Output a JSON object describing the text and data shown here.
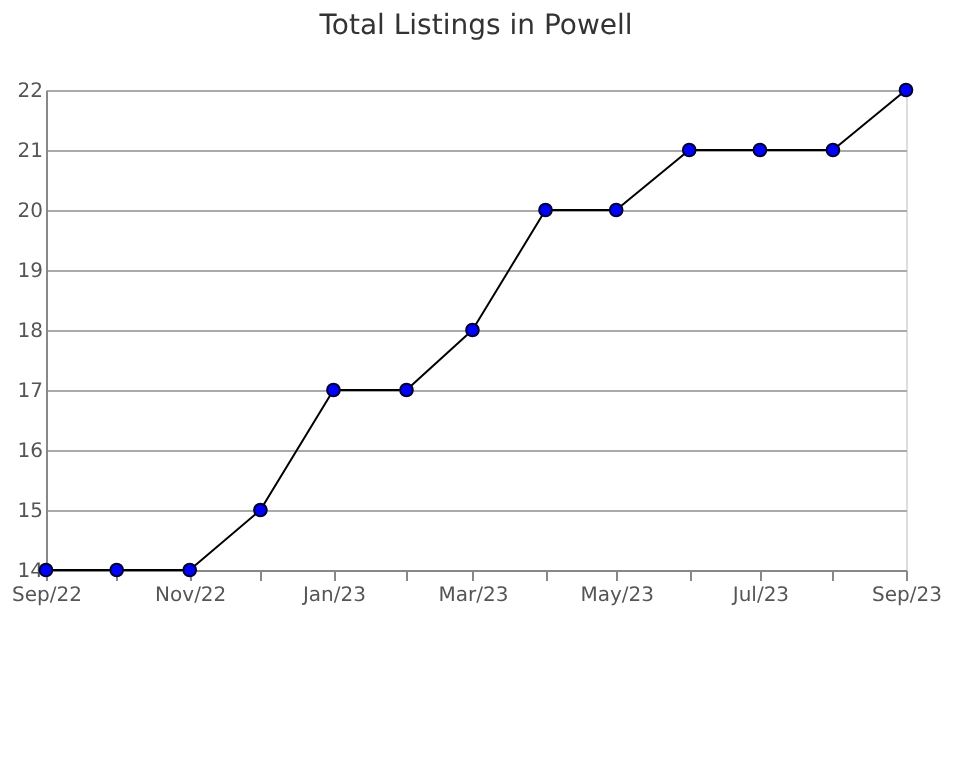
{
  "chart_data": {
    "type": "line",
    "title": "Total Listings in Powell",
    "x": [
      "2022-09",
      "2022-10",
      "2022-11",
      "2022-12",
      "2023-01",
      "2023-02",
      "2023-03",
      "2023-04",
      "2023-05",
      "2023-06",
      "2023-07",
      "2023-08",
      "2023-09"
    ],
    "series": [
      {
        "color": "#0000ff",
        "values": [
          14,
          14,
          14,
          15,
          17,
          17,
          18,
          20,
          20,
          21,
          21,
          21,
          22
        ]
      }
    ],
    "xlim": [
      "2022-09",
      "2023-09"
    ],
    "xticks": [
      {
        "value": "2022-09",
        "label": "Sep/22"
      },
      {
        "value": "2022-10",
        "label": null
      },
      {
        "value": "2022-11",
        "label": "Nov/22"
      },
      {
        "value": "2022-12",
        "label": null
      },
      {
        "value": "2023-01",
        "label": "Jan/23"
      },
      {
        "value": "2023-02",
        "label": null
      },
      {
        "value": "2023-03",
        "label": "Mar/23"
      },
      {
        "value": "2023-04",
        "label": null
      },
      {
        "value": "2023-05",
        "label": "May/23"
      },
      {
        "value": "2023-06",
        "label": null
      },
      {
        "value": "2023-07",
        "label": "Jul/23"
      },
      {
        "value": "2023-08",
        "label": null
      },
      {
        "value": "2023-09",
        "label": "Sep/23"
      }
    ],
    "ylim": [
      14,
      22
    ],
    "yticks": [
      14,
      15,
      16,
      17,
      18,
      19,
      20,
      21,
      22
    ],
    "grid": "y",
    "marker": "circle",
    "line_style": "solid"
  }
}
